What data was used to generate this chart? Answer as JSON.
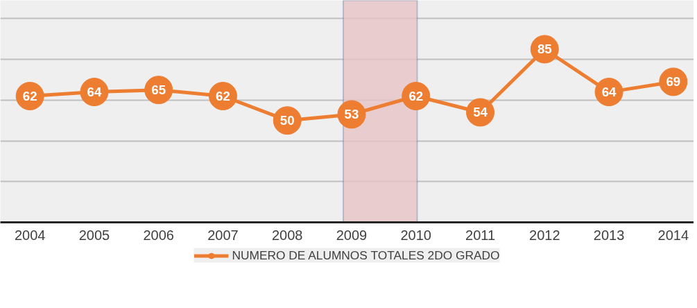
{
  "chart_data": {
    "type": "line",
    "x": [
      2004,
      2005,
      2006,
      2007,
      2008,
      2009,
      2010,
      2011,
      2012,
      2013,
      2014
    ],
    "series": [
      {
        "name": "NUMERO DE ALUMNOS TOTALES 2DO GRADO",
        "color": "#ed7d31",
        "values": [
          62,
          64,
          65,
          62,
          50,
          53,
          62,
          54,
          85,
          64,
          69
        ]
      }
    ],
    "xlim": [
      2003.54,
      2014.32
    ],
    "xticks": [
      2004,
      2005,
      2006,
      2007,
      2008,
      2009,
      2010,
      2011,
      2012,
      2013,
      2014
    ],
    "ylim": [
      0,
      109
    ],
    "yticks": [
      {
        "value": 0,
        "label": null
      },
      {
        "value": 20,
        "label": null
      },
      {
        "value": 40,
        "label": null
      },
      {
        "value": 60,
        "label": null
      },
      {
        "value": 80,
        "label": null
      },
      {
        "value": 100,
        "label": null
      }
    ],
    "tick_labels": "x",
    "grid": "y",
    "legend": "bottom",
    "marker": "circle",
    "line_style": "solid",
    "data_labels": true,
    "bands": [
      {
        "axis": "x",
        "from": 2008.87,
        "to": 2010.02,
        "color": "#e6c3c6"
      }
    ]
  }
}
